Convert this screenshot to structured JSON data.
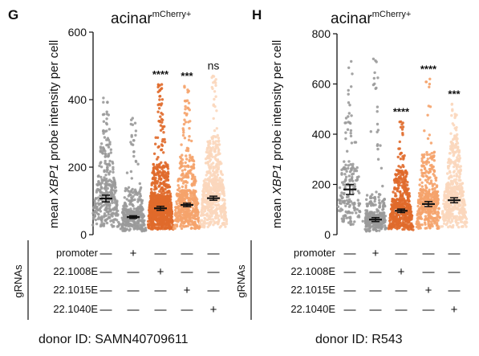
{
  "chart_data": [
    {
      "type": "scatter",
      "panel": "G",
      "title": "acinar",
      "title_superscript": "mCherry+",
      "ylabel_prefix": "mean ",
      "ylabel_gene": "XBP1",
      "ylabel_suffix": " probe intensity per cell",
      "ylim": [
        0,
        600
      ],
      "yticks": [
        "0",
        "200",
        "400",
        "600"
      ],
      "categories": [
        "promoter",
        "22.1008E",
        "22.1015E",
        "22.1040E"
      ],
      "grna_label": "gRNAs",
      "donor": "donor ID: SAMN40709611",
      "series": [
        {
          "color": "#9a9a9a",
          "mean": 107,
          "sem_low": 97,
          "sem_high": 117,
          "max": 405,
          "n": 340,
          "sig": "",
          "design": [
            "—",
            "—",
            "—",
            "—"
          ]
        },
        {
          "color": "#9a9a9a",
          "mean": 52,
          "sem_low": 48,
          "sem_high": 56,
          "max": 345,
          "n": 320,
          "sig": "",
          "design": [
            "+",
            "—",
            "—",
            "—"
          ]
        },
        {
          "color": "#e06a2b",
          "mean": 78,
          "sem_low": 72,
          "sem_high": 84,
          "max": 445,
          "n": 900,
          "sig": "****",
          "design": [
            "—",
            "+",
            "—",
            "—"
          ]
        },
        {
          "color": "#f5a36b",
          "mean": 88,
          "sem_low": 83,
          "sem_high": 93,
          "max": 440,
          "n": 500,
          "sig": "***",
          "design": [
            "—",
            "—",
            "+",
            "—"
          ]
        },
        {
          "color": "#fbd7bd",
          "mean": 108,
          "sem_low": 102,
          "sem_high": 114,
          "max": 470,
          "n": 600,
          "sig": "ns",
          "design": [
            "—",
            "—",
            "—",
            "+"
          ]
        }
      ]
    },
    {
      "type": "scatter",
      "panel": "H",
      "title": "acinar",
      "title_superscript": "mCherry+",
      "ylabel_prefix": "mean ",
      "ylabel_gene": "XBP1",
      "ylabel_suffix": " probe intensity per cell",
      "ylim": [
        0,
        800
      ],
      "yticks": [
        "0",
        "200",
        "400",
        "600",
        "800"
      ],
      "categories": [
        "promoter",
        "22.1008E",
        "22.1015E",
        "22.1040E"
      ],
      "grna_label": "gRNAs",
      "donor": "donor ID: R543",
      "series": [
        {
          "color": "#9a9a9a",
          "mean": 180,
          "sem_low": 160,
          "sem_high": 200,
          "max": 690,
          "n": 180,
          "sig": "",
          "design": [
            "—",
            "—",
            "—",
            "—"
          ]
        },
        {
          "color": "#9a9a9a",
          "mean": 60,
          "sem_low": 52,
          "sem_high": 68,
          "max": 700,
          "n": 280,
          "sig": "",
          "design": [
            "+",
            "—",
            "—",
            "—"
          ]
        },
        {
          "color": "#e06a2b",
          "mean": 95,
          "sem_low": 88,
          "sem_high": 102,
          "max": 450,
          "n": 500,
          "sig": "****",
          "design": [
            "—",
            "+",
            "—",
            "—"
          ]
        },
        {
          "color": "#f5a36b",
          "mean": 122,
          "sem_low": 112,
          "sem_high": 132,
          "max": 620,
          "n": 400,
          "sig": "****",
          "design": [
            "—",
            "—",
            "+",
            "—"
          ]
        },
        {
          "color": "#fbd7bd",
          "mean": 137,
          "sem_low": 127,
          "sem_high": 147,
          "max": 520,
          "n": 500,
          "sig": "***",
          "design": [
            "—",
            "—",
            "—",
            "+"
          ]
        }
      ]
    }
  ]
}
